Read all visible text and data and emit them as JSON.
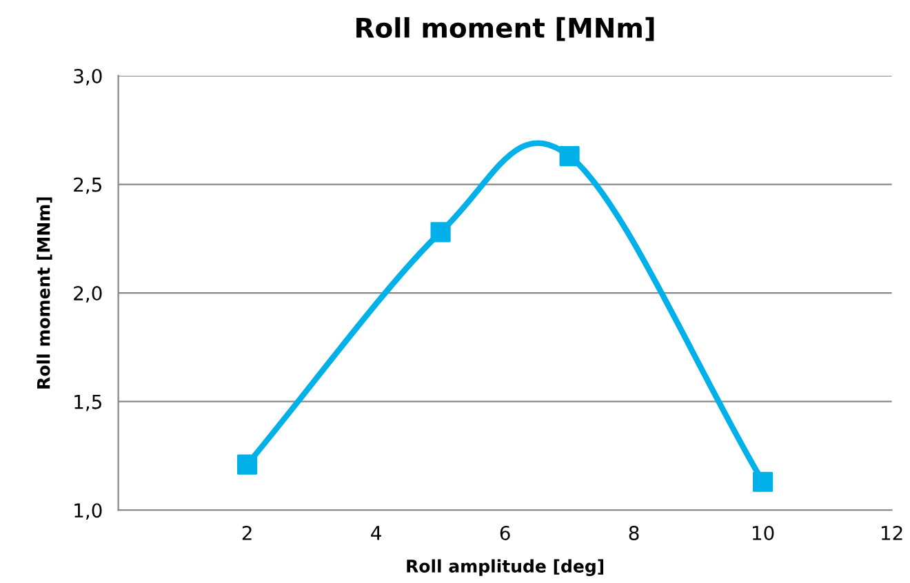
{
  "chart_data": {
    "type": "line",
    "title": "Roll moment [MNm]",
    "xlabel": "Roll amplitude [deg]",
    "ylabel": "Roll moment [MNm]",
    "x": [
      2,
      5,
      7,
      10
    ],
    "series": [
      {
        "color": "#00b0e8",
        "values": [
          1.21,
          2.28,
          2.63,
          1.13
        ]
      }
    ],
    "xlim": [
      0,
      12
    ],
    "xticks": [
      2,
      4,
      6,
      8,
      10,
      12
    ],
    "ylim": [
      1.0,
      3.0
    ],
    "yticks": [
      {
        "value": 1.0,
        "label": "1,0"
      },
      {
        "value": 1.5,
        "label": "1,5"
      },
      {
        "value": 2.0,
        "label": "2,0"
      },
      {
        "value": 2.5,
        "label": "2,5"
      },
      {
        "value": 3.0,
        "label": "3,0"
      }
    ],
    "grid": "y",
    "marker": "square",
    "line_style": "solid",
    "legend": false
  }
}
